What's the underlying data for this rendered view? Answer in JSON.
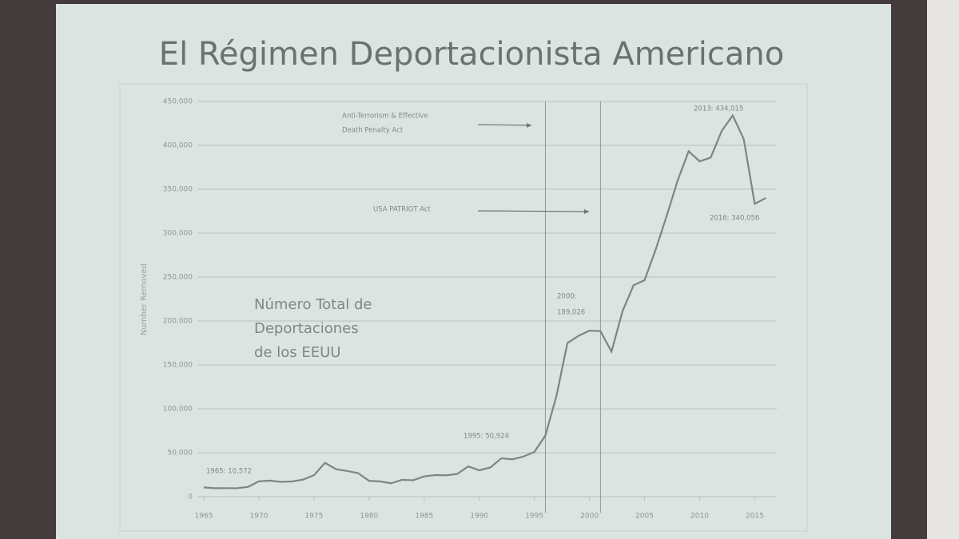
{
  "chart_data": {
    "type": "line",
    "title": "El Régimen Deportacionista Americano",
    "ylabel": "Number Removed",
    "x": [
      1965,
      1966,
      1967,
      1968,
      1969,
      1970,
      1971,
      1972,
      1973,
      1974,
      1975,
      1976,
      1977,
      1978,
      1979,
      1980,
      1981,
      1982,
      1983,
      1984,
      1985,
      1986,
      1987,
      1988,
      1989,
      1990,
      1991,
      1992,
      1993,
      1994,
      1995,
      1996,
      1997,
      1998,
      1999,
      2000,
      2001,
      2002,
      2003,
      2004,
      2005,
      2006,
      2007,
      2008,
      2009,
      2010,
      2011,
      2012,
      2013,
      2014,
      2015,
      2016
    ],
    "series": [
      {
        "name": "Number Removed",
        "color": "#7d8582",
        "values": [
          10572,
          9680,
          9728,
          9590,
          11030,
          17469,
          18294,
          16883,
          17346,
          19413,
          24432,
          38471,
          31263,
          29277,
          26825,
          18013,
          17379,
          15216,
          19211,
          18696,
          23105,
          24592,
          24336,
          25829,
          34427,
          30039,
          33189,
          43671,
          42542,
          45674,
          50924,
          69680,
          114432,
          174813,
          183114,
          189026,
          188467,
          165168,
          211098,
          240665,
          246431,
          280974,
          319382,
          359795,
          393289,
          381738,
          386020,
          416324,
          434015,
          407075,
          333341,
          340056
        ]
      }
    ],
    "xlim": [
      1965,
      2017
    ],
    "xticks": [
      1965,
      1970,
      1975,
      1980,
      1985,
      1990,
      1995,
      2000,
      2005,
      2010,
      2015
    ],
    "ylim": [
      0,
      450000
    ],
    "yticks": [
      0,
      {
        "value": 50000,
        "label": "50,000"
      },
      {
        "value": 100000,
        "label": "100,000"
      },
      {
        "value": 150000,
        "label": "150,000"
      },
      {
        "value": 200000,
        "label": "200,000"
      },
      {
        "value": 250000,
        "label": "250,000"
      },
      {
        "value": 300000,
        "label": "300,000"
      },
      {
        "value": 350000,
        "label": "350,000"
      },
      {
        "value": 400000,
        "label": "400,000"
      },
      {
        "value": 450000,
        "label": "450,000"
      }
    ],
    "grid": true,
    "reference_lines": [
      1996,
      2001
    ],
    "annotations": [
      "1965: 10,572",
      "1995: 50,924",
      "2000:",
      "189,026",
      "2013: 434,015",
      "2016: 340,056",
      "Anti-Terrorism & Effective",
      "Death Penalty Act",
      "USA PATRIOT Act"
    ],
    "text_box": [
      "Número Total de",
      "Deportaciones",
      "de los EEUU"
    ]
  }
}
